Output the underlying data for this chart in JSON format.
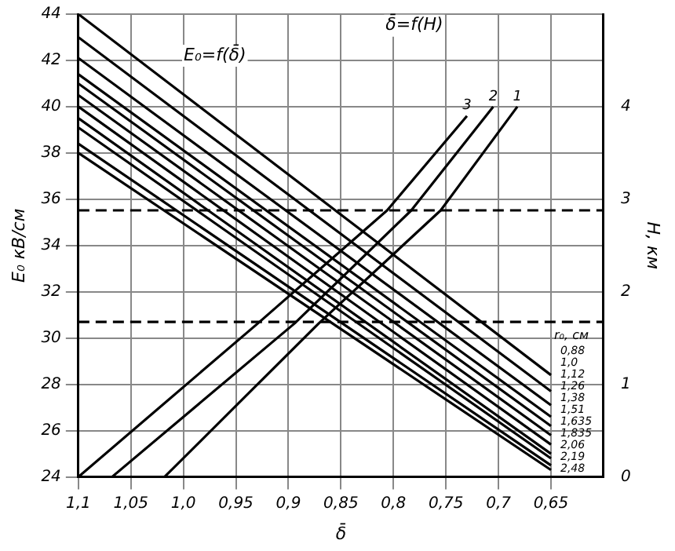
{
  "chart_data": {
    "type": "line",
    "xlabel": "δ̄",
    "ylabel": "E₀ кВ/см",
    "y2label": "H, км",
    "legend_title": "r₀, см",
    "annotations": [
      {
        "text": "E₀=f(δ̄)",
        "x": 0.97,
        "y": 42.2
      },
      {
        "text": "δ̄=f(H)",
        "x": 0.78,
        "y": 43.5
      }
    ],
    "xlim": [
      1.1,
      0.6
    ],
    "xticks": [
      {
        "value": 1.1,
        "label": "1,1"
      },
      {
        "value": 1.05,
        "label": "1,05"
      },
      {
        "value": 1.0,
        "label": "1,0"
      },
      {
        "value": 0.95,
        "label": "0,95"
      },
      {
        "value": 0.9,
        "label": "0,9"
      },
      {
        "value": 0.85,
        "label": "0,85"
      },
      {
        "value": 0.8,
        "label": "0,8"
      },
      {
        "value": 0.75,
        "label": "0,75"
      },
      {
        "value": 0.7,
        "label": "0,7"
      },
      {
        "value": 0.65,
        "label": "0,65"
      }
    ],
    "ylim": [
      24,
      44
    ],
    "yticks": [
      24,
      26,
      28,
      30,
      32,
      34,
      36,
      38,
      40,
      42,
      44
    ],
    "y2lim": [
      0,
      5
    ],
    "y2ticks": [
      0,
      1,
      2,
      3,
      4
    ],
    "grid": true,
    "legend": false,
    "marker": "none",
    "line_style": "solid",
    "ref_lines": [
      {
        "axis": "y",
        "value": 30.7,
        "line_style": "dashed"
      },
      {
        "axis": "y2",
        "value": 2.88,
        "line_style": "dashed"
      }
    ],
    "series": [
      {
        "name": "0,88",
        "color": "#000000",
        "x": [
          1.1,
          0.65
        ],
        "values": [
          44,
          28.4
        ]
      },
      {
        "name": "1,0",
        "color": "#000000",
        "x": [
          1.1,
          0.65
        ],
        "values": [
          43.0,
          27.7
        ]
      },
      {
        "name": "1,12",
        "color": "#000000",
        "x": [
          1.1,
          0.65
        ],
        "values": [
          42.1,
          27.1
        ]
      },
      {
        "name": "1,26",
        "color": "#000000",
        "x": [
          1.1,
          0.65
        ],
        "values": [
          41.4,
          26.6
        ]
      },
      {
        "name": "1,38",
        "color": "#000000",
        "x": [
          1.1,
          0.65
        ],
        "values": [
          41.0,
          26.2
        ]
      },
      {
        "name": "1,51",
        "color": "#000000",
        "x": [
          1.1,
          0.65
        ],
        "values": [
          40.5,
          25.8
        ]
      },
      {
        "name": "1,635",
        "color": "#000000",
        "x": [
          1.1,
          0.65
        ],
        "values": [
          40.0,
          25.4
        ]
      },
      {
        "name": "1,835",
        "color": "#000000",
        "x": [
          1.1,
          0.65
        ],
        "values": [
          39.5,
          25.0
        ]
      },
      {
        "name": "2,06",
        "color": "#000000",
        "x": [
          1.1,
          0.65
        ],
        "values": [
          39.1,
          24.8
        ]
      },
      {
        "name": "2,19",
        "color": "#000000",
        "x": [
          1.1,
          0.65
        ],
        "values": [
          38.4,
          24.5
        ]
      },
      {
        "name": "2,48",
        "color": "#000000",
        "x": [
          1.1,
          0.65
        ],
        "values": [
          38.0,
          24.3
        ]
      },
      {
        "name": "3",
        "color": "#000000",
        "axis": "y2",
        "x": [
          1.1,
          0.929,
          0.806,
          0.73
        ],
        "values": [
          0,
          1.66,
          2.88,
          3.9
        ]
      },
      {
        "name": "2",
        "color": "#000000",
        "axis": "y2",
        "x": [
          1.068,
          0.894,
          0.783,
          0.705
        ],
        "values": [
          0,
          1.66,
          2.88,
          4
        ]
      },
      {
        "name": "1",
        "color": "#000000",
        "axis": "y2",
        "x": [
          1.018,
          0.871,
          0.755,
          0.682
        ],
        "values": [
          0,
          1.66,
          2.88,
          4
        ]
      }
    ]
  }
}
